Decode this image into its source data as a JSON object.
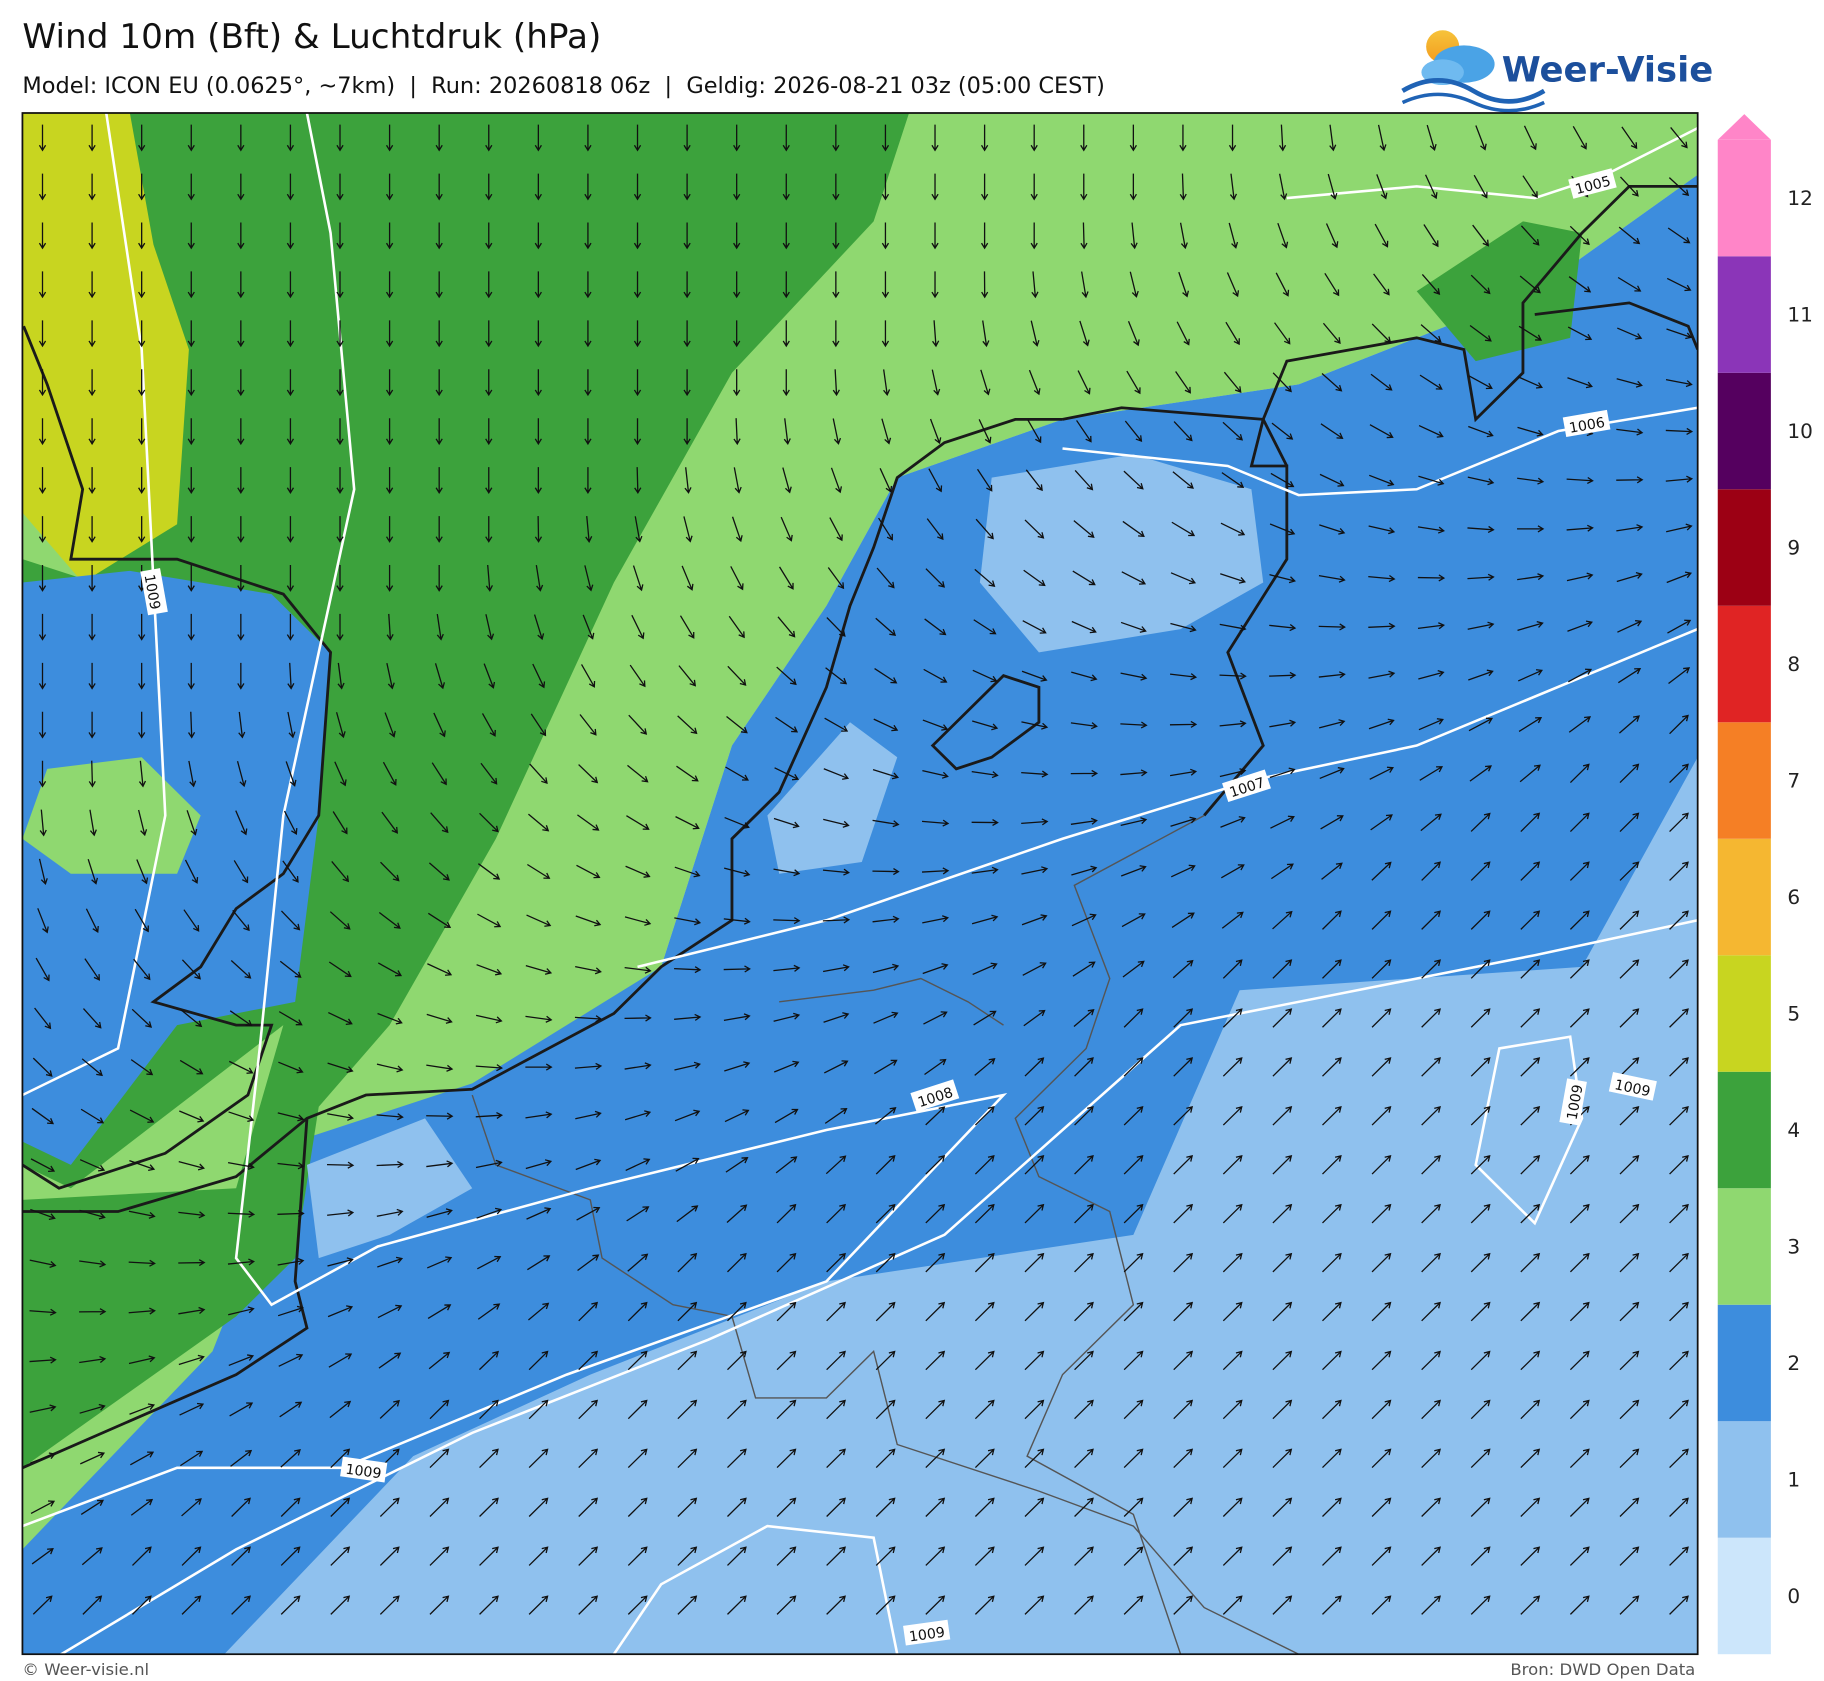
{
  "header": {
    "title": "Wind 10m (Bft) & Luchtdruk (hPa)",
    "subtitle": "Model: ICON EU (0.0625°, ~7km)  |  Run: 20260818 06z  |  Geldig: 2026-08-21 03z (05:00 CEST)",
    "logo": "Weer-Visie"
  },
  "colorbar": {
    "levels": [
      0,
      1,
      2,
      3,
      4,
      5,
      6,
      7,
      8,
      9,
      10,
      11,
      12
    ],
    "colors": [
      "#cce6fb",
      "#8fc1ee",
      "#3d8ddd",
      "#8fd870",
      "#3ca23c",
      "#c8d520",
      "#f5b731",
      "#f57f25",
      "#e02424",
      "#9c0014",
      "#55005f",
      "#8b35b8",
      "#ff85c8"
    ]
  },
  "isobar_labels": [
    1005,
    1006,
    1007,
    1008,
    1009,
    1009,
    1009,
    1009,
    1009
  ],
  "footer": {
    "left": "© Weer-visie.nl",
    "right": "Bron: DWD Open Data"
  }
}
